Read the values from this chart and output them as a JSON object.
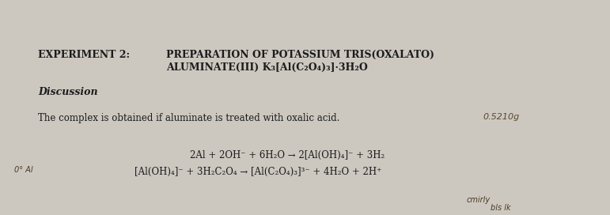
{
  "bg_color": "#ccc8c0",
  "title_label": "EXPERIMENT 2:",
  "title_text1": "PREPARATION OF POTASSIUM TRIS(OXALATO)",
  "title_text2": "ALUMINATE(III) K₃[Al(C₂O₄)₃]·3H₂O",
  "section": "Discussion",
  "body_text": "The complex is obtained if aluminate is treated with oxalic acid.",
  "handwritten": "0.5210g",
  "eq1": "2Al + 2OH⁻ + 6H₂O → 2[Al(OH)₄]⁻ + 3H₂",
  "eq2": "[Al(OH)₄]⁻ + 3H₂C₂O₄ → [Al(C₂O₄)₃]³⁻ + 4H₂O + 2H⁺",
  "hw_label": "0° Al",
  "hw_note1": "cmirlу",
  "hw_note2": "bls lk"
}
